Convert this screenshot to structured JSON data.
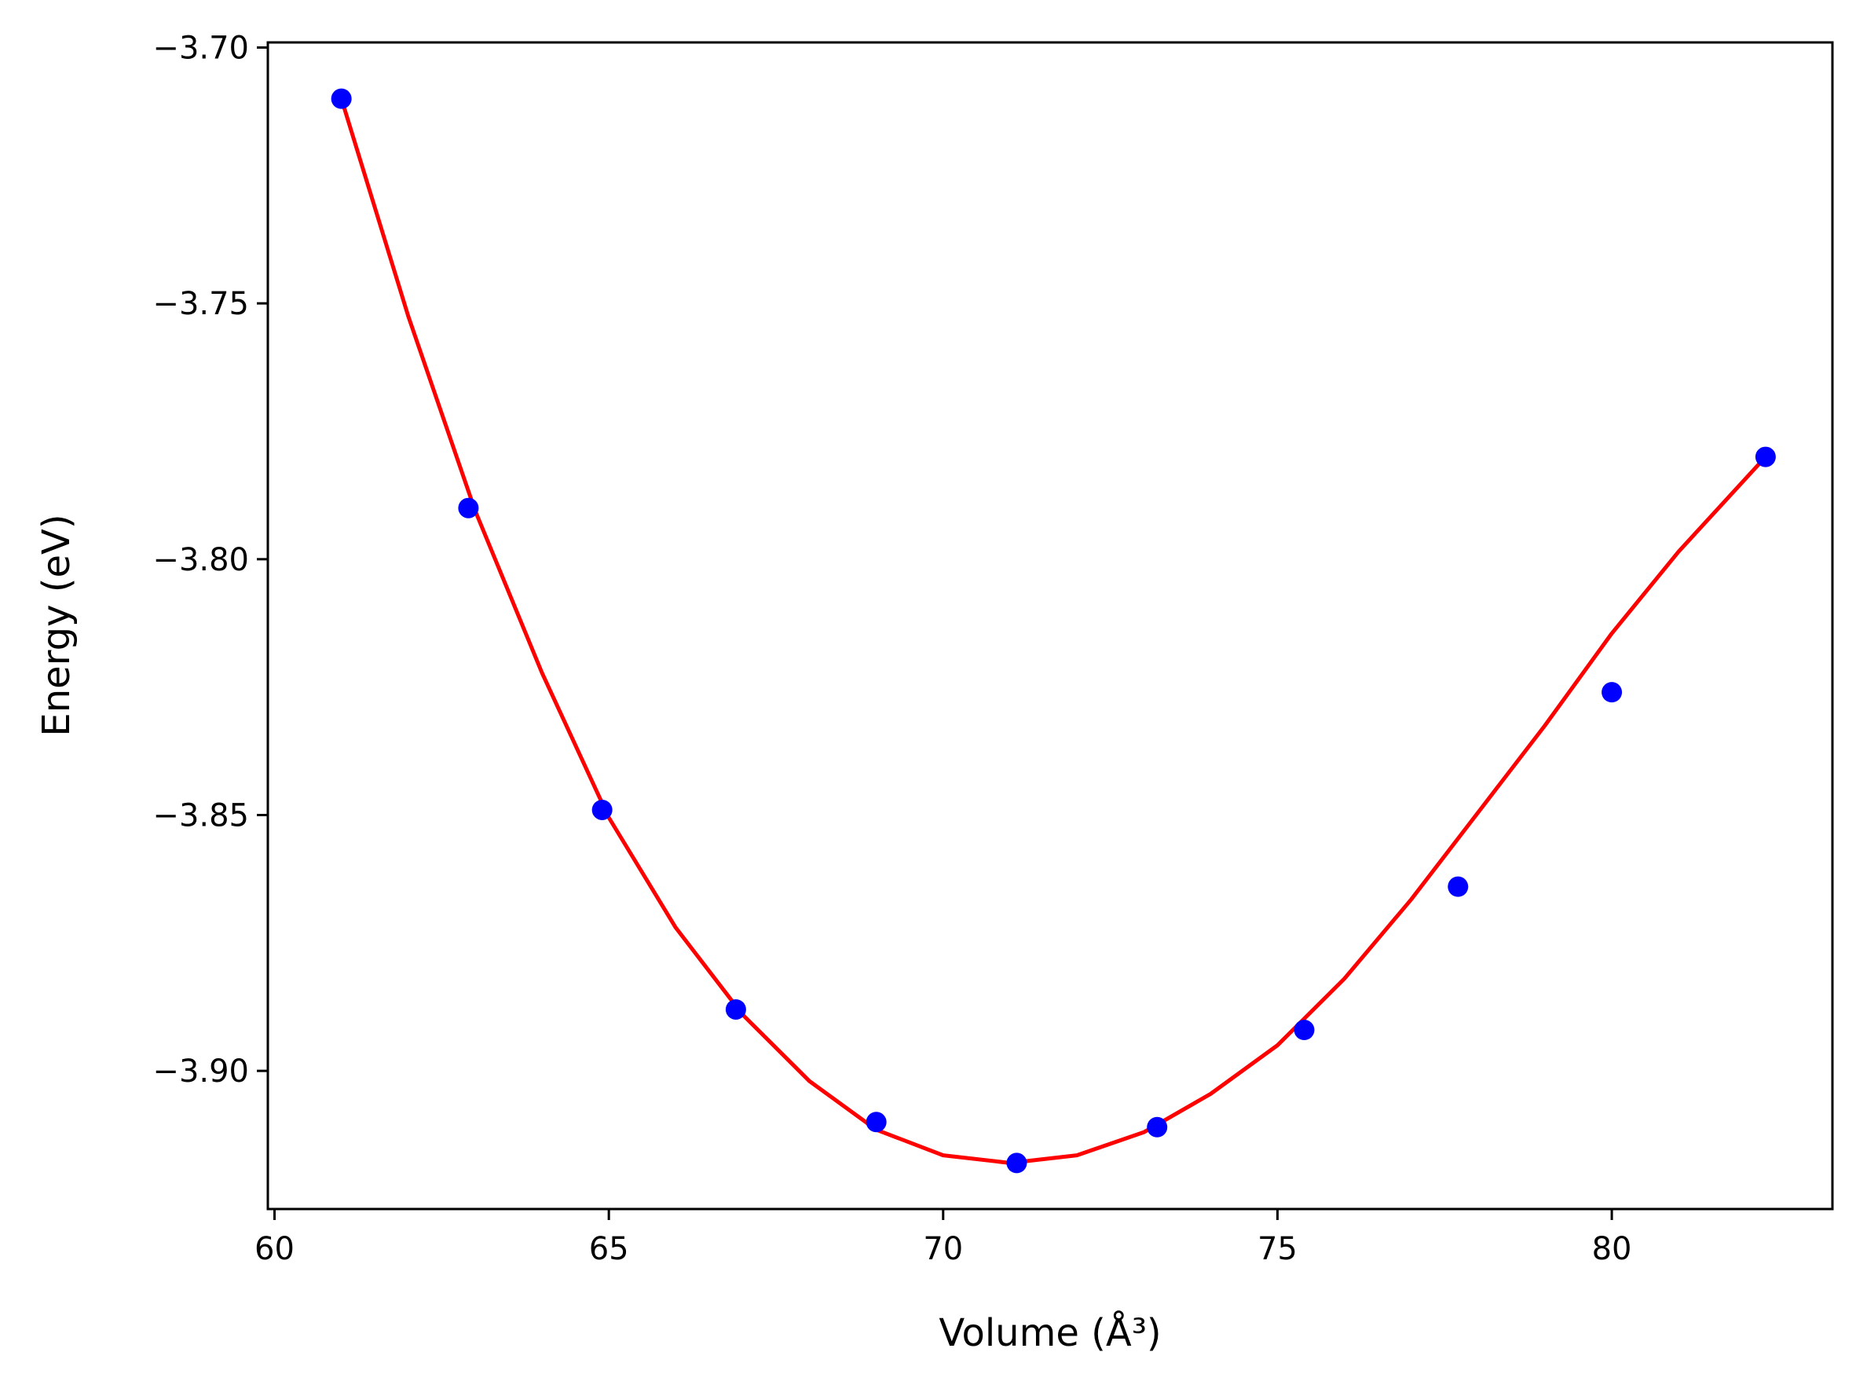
{
  "chart_data": {
    "type": "scatter",
    "xlabel": "Volume (Å³)",
    "ylabel": "Energy (eV)",
    "xlim": [
      59.9,
      83.3
    ],
    "ylim": [
      -3.927,
      -3.699
    ],
    "x_ticks": [
      60,
      65,
      70,
      75,
      80
    ],
    "y_ticks": [
      -3.7,
      -3.75,
      -3.8,
      -3.85,
      -3.9
    ],
    "x_tick_labels": [
      "60",
      "65",
      "70",
      "75",
      "80"
    ],
    "y_tick_labels": [
      "−3.70",
      "−3.75",
      "−3.80",
      "−3.85",
      "−3.90"
    ],
    "grid": false,
    "series": [
      {
        "kind": "scatter",
        "color": "#0000ff",
        "x": [
          61.0,
          62.9,
          64.9,
          66.9,
          69.0,
          71.1,
          73.2,
          75.4,
          77.7,
          80.0,
          82.3
        ],
        "y": [
          -3.71,
          -3.79,
          -3.849,
          -3.888,
          -3.91,
          -3.918,
          -3.911,
          -3.892,
          -3.864,
          -3.826,
          -3.78
        ]
      },
      {
        "kind": "line",
        "color": "#ff0000",
        "x": [
          61.0,
          62.0,
          63.0,
          64.0,
          65.0,
          66.0,
          67.0,
          68.0,
          69.0,
          70.0,
          71.0,
          72.0,
          73.0,
          74.0,
          75.0,
          76.0,
          77.0,
          78.0,
          79.0,
          80.0,
          81.0,
          82.3
        ],
        "y": [
          -3.71,
          -3.7525,
          -3.7905,
          -3.8222,
          -3.8505,
          -3.872,
          -3.889,
          -3.902,
          -3.9115,
          -3.9165,
          -3.918,
          -3.9165,
          -3.912,
          -3.9045,
          -3.895,
          -3.882,
          -3.8665,
          -3.8495,
          -3.8325,
          -3.8145,
          -3.7985,
          -3.78
        ]
      }
    ]
  }
}
